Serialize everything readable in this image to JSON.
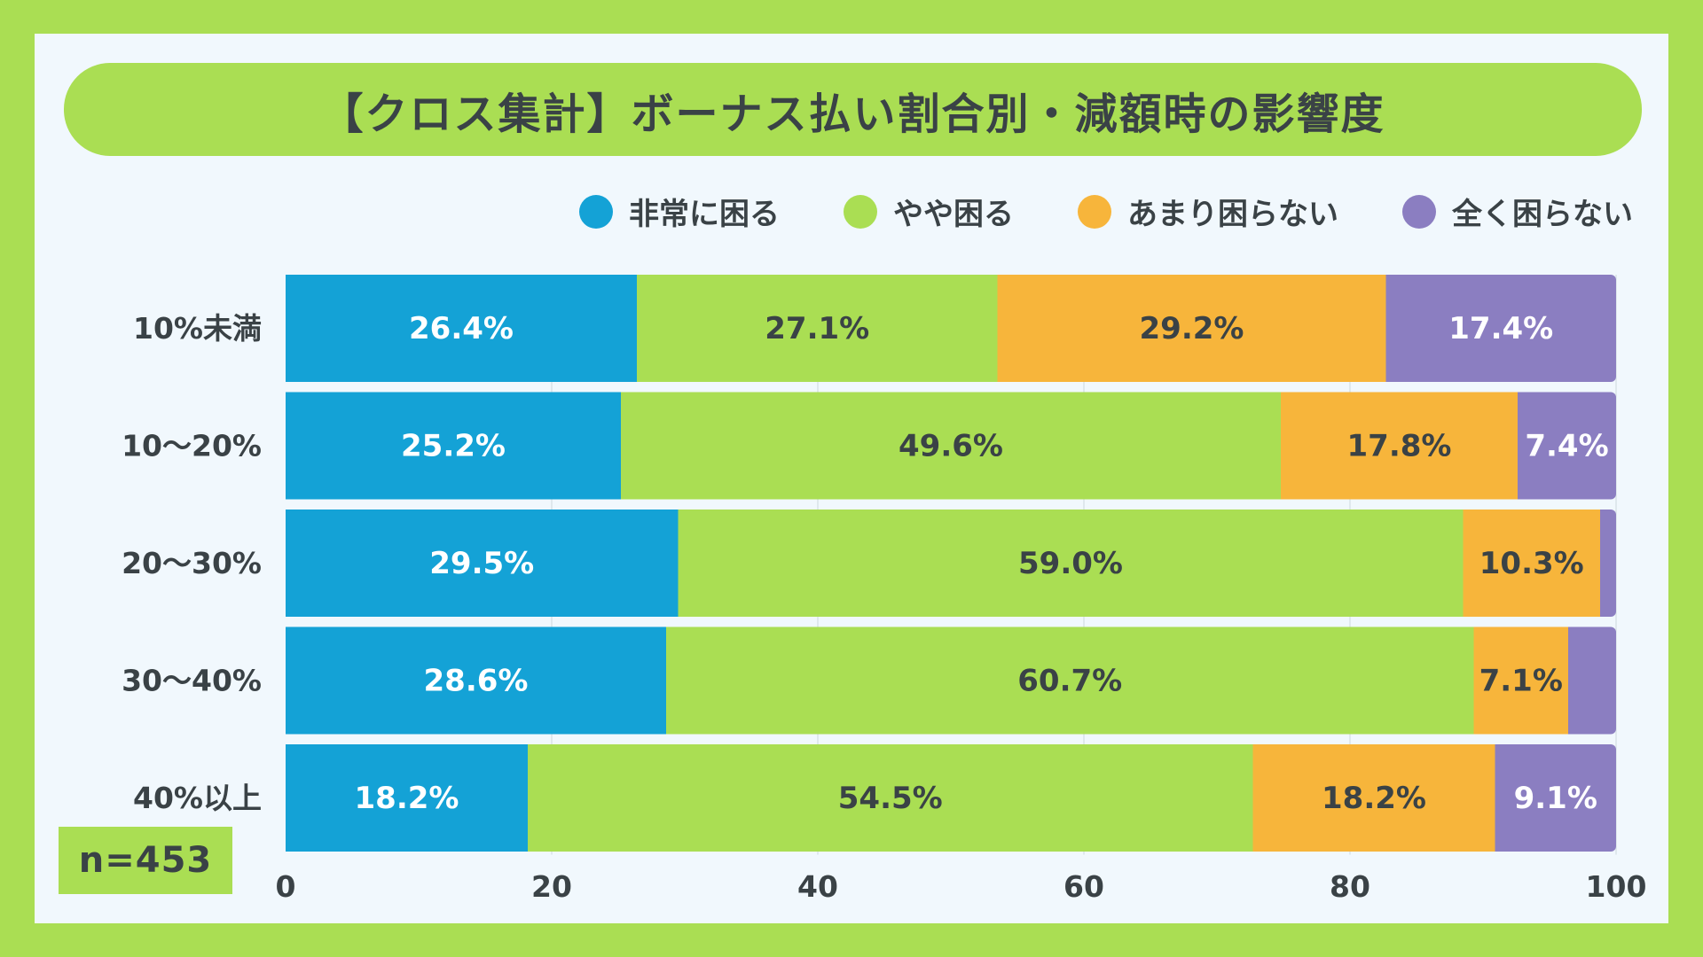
{
  "title": "【クロス集計】ボーナス払い割合別・減額時の影響度",
  "sample_size": "n=453",
  "colors": {
    "非常に困る": "#14a2d6",
    "やや困る": "#aade53",
    "あまり困らない": "#f7b53b",
    "全く困らない": "#8b7ec1",
    "text_dark": "#3a4246",
    "text_white": "#ffffff"
  },
  "legend": [
    {
      "label": "非常に困る",
      "color": "#14a2d6"
    },
    {
      "label": "やや困る",
      "color": "#aade53"
    },
    {
      "label": "あまり困らない",
      "color": "#f7b53b"
    },
    {
      "label": "全く困らない",
      "color": "#8b7ec1"
    }
  ],
  "chart_data": {
    "type": "bar",
    "orientation": "horizontal",
    "stacked": true,
    "title": "【クロス集計】ボーナス払い割合別・減額時の影響度",
    "categories": [
      "10%未満",
      "10〜20%",
      "20〜30%",
      "30〜40%",
      "40%以上"
    ],
    "series": [
      {
        "name": "非常に困る",
        "values": [
          26.4,
          25.2,
          29.5,
          28.6,
          18.2
        ],
        "labels": [
          "26.4%",
          "25.2%",
          "29.5%",
          "28.6%",
          "18.2%"
        ]
      },
      {
        "name": "やや困る",
        "values": [
          27.1,
          49.6,
          59.0,
          60.7,
          54.5
        ],
        "labels": [
          "27.1%",
          "49.6%",
          "59.0%",
          "60.7%",
          "54.5%"
        ]
      },
      {
        "name": "あまり困らない",
        "values": [
          29.2,
          17.8,
          10.3,
          7.1,
          18.2
        ],
        "labels": [
          "29.2%",
          "17.8%",
          "10.3%",
          "7.1%",
          "18.2%"
        ]
      },
      {
        "name": "全く困らない",
        "values": [
          17.4,
          7.4,
          1.2,
          3.6,
          9.1
        ],
        "labels": [
          "17.4%",
          "7.4%",
          "",
          "",
          "9.1%"
        ]
      }
    ],
    "xlim": [
      0,
      100
    ],
    "xticks": [
      0,
      20,
      40,
      60,
      80,
      100
    ],
    "grid": true,
    "legend_position": "top-right",
    "xlabel": "",
    "ylabel": ""
  }
}
